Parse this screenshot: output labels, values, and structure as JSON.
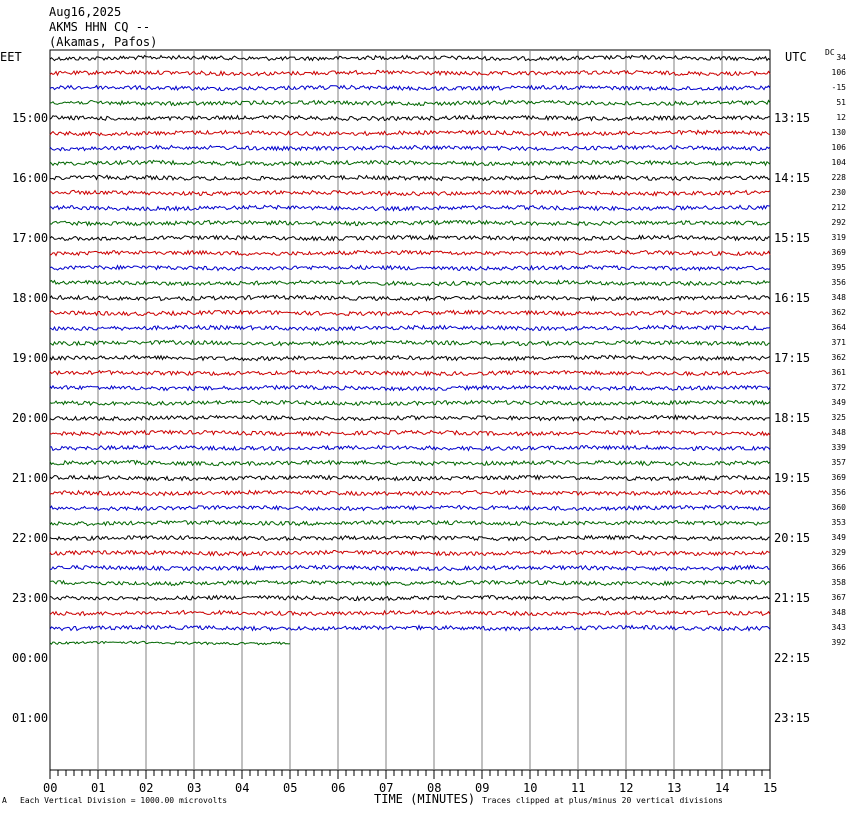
{
  "header": {
    "date": "Aug16,2025",
    "station": "AKMS HHN CQ --",
    "location": "(Akamas, Pafos)"
  },
  "left_tz": "EET",
  "right_tz": "UTC",
  "dc_label": "DC",
  "xaxis_title": "TIME (MINUTES)",
  "footer": {
    "division": "Each Vertical Division = 1000.00 microvolts",
    "clipping": "Traces clipped at plus/minus 20 vertical divisions",
    "corner": "A"
  },
  "colors": {
    "black": "#000000",
    "red": "#cc0000",
    "blue": "#0000cc",
    "green": "#006600",
    "grid": "#808080"
  },
  "chart_data": {
    "type": "line",
    "title": "AKMS HHN CQ --",
    "xlabel": "TIME (MINUTES)",
    "xlim": [
      0,
      15
    ],
    "x_ticks": [
      "00",
      "01",
      "02",
      "03",
      "04",
      "05",
      "06",
      "07",
      "08",
      "09",
      "10",
      "11",
      "12",
      "13",
      "14",
      "15"
    ],
    "left_hour_labels": [
      "15:00",
      "16:00",
      "17:00",
      "18:00",
      "19:00",
      "20:00",
      "21:00",
      "22:00",
      "23:00",
      "00:00",
      "01:00"
    ],
    "right_hour_labels": [
      "13:15",
      "14:15",
      "15:15",
      "16:15",
      "17:15",
      "18:15",
      "19:15",
      "20:15",
      "21:15",
      "22:15",
      "23:15"
    ],
    "trace_colors": [
      "black",
      "red",
      "blue",
      "green"
    ],
    "dc_offsets": [
      34,
      106,
      -15,
      51,
      12,
      130,
      106,
      104,
      228,
      230,
      212,
      292,
      319,
      369,
      395,
      356,
      348,
      362,
      364,
      371,
      362,
      361,
      372,
      349,
      325,
      348,
      339,
      357,
      369,
      356,
      360,
      353,
      349,
      329,
      366,
      358,
      367,
      348,
      343,
      392
    ],
    "trace_count": 40,
    "last_trace_end_minute": 5
  }
}
